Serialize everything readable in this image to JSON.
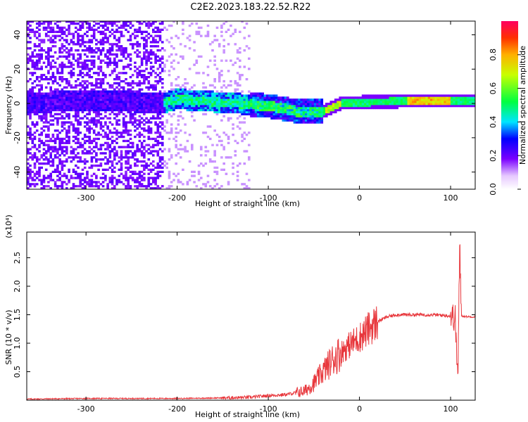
{
  "title": "C2E2.2023.183.22.52.R22",
  "chart_data": [
    {
      "type": "heatmap",
      "xlabel": "Height of straight line (km)",
      "ylabel": "Frequency (Hz)",
      "xlim": [
        -365,
        127
      ],
      "ylim": [
        -50,
        48
      ],
      "x_ticks": [
        -300,
        -200,
        -100,
        0,
        100
      ],
      "y_ticks": [
        -40,
        -20,
        0,
        20,
        40
      ],
      "colorbar": {
        "label": "Normalized spectral amplitude",
        "range": [
          0,
          1
        ],
        "ticks": [
          0.0,
          0.2,
          0.4,
          0.6,
          0.8
        ]
      },
      "ridge": [
        {
          "x": -365,
          "f": 0
        },
        {
          "x": -300,
          "f": 1
        },
        {
          "x": -215,
          "f": 0
        },
        {
          "x": -200,
          "f": 2
        },
        {
          "x": -150,
          "f": 0
        },
        {
          "x": -100,
          "f": -2
        },
        {
          "x": -70,
          "f": -5
        },
        {
          "x": -40,
          "f": -5
        },
        {
          "x": -20,
          "f": 0
        },
        {
          "x": 0,
          "f": 0
        },
        {
          "x": 50,
          "f": 1
        },
        {
          "x": 100,
          "f": 1
        },
        {
          "x": 127,
          "f": 1
        }
      ]
    },
    {
      "type": "line",
      "xlabel": "Height of straight line (km)",
      "ylabel": "SNR (10 * v/v)",
      "scale_label": "(x10⁴)",
      "xlim": [
        -365,
        127
      ],
      "ylim": [
        0,
        2.95
      ],
      "x_ticks": [
        -300,
        -200,
        -100,
        0,
        100
      ],
      "y_ticks": [
        0.5,
        1.0,
        1.5,
        2.0,
        2.5
      ],
      "series": [
        {
          "color": "#e8383d",
          "x": [
            -365,
            -300,
            -200,
            -150,
            -120,
            -100,
            -80,
            -60,
            -50,
            -40,
            -30,
            -20,
            -10,
            0,
            10,
            20,
            30,
            40,
            60,
            80,
            100,
            105,
            108,
            110,
            112,
            115,
            127
          ],
          "y": [
            0.02,
            0.03,
            0.03,
            0.04,
            0.05,
            0.08,
            0.1,
            0.16,
            0.3,
            0.5,
            0.7,
            0.85,
            0.98,
            1.1,
            1.25,
            1.38,
            1.46,
            1.5,
            1.5,
            1.5,
            1.48,
            1.45,
            0.35,
            2.7,
            1.48,
            1.47,
            1.46
          ]
        }
      ]
    }
  ]
}
